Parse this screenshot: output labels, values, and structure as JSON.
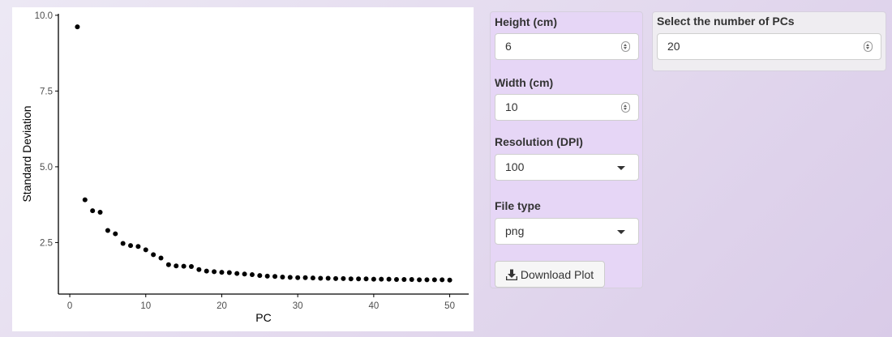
{
  "chart_data": {
    "type": "scatter",
    "title": "",
    "xlabel": "PC",
    "ylabel": "Standard Deviation",
    "xlim": [
      -1.5,
      52.5
    ],
    "ylim": [
      0.8,
      10.05
    ],
    "xticks": [
      0,
      10,
      20,
      30,
      40,
      50
    ],
    "yticks": [
      2.5,
      5.0,
      7.5,
      10.0
    ],
    "xtick_labels": [
      "0",
      "10",
      "20",
      "30",
      "40",
      "50"
    ],
    "ytick_labels": [
      "2.5",
      "5.0",
      "7.5",
      "10.0"
    ],
    "grid": false,
    "legend": "none",
    "point_color": "#000000",
    "x": [
      1,
      2,
      3,
      4,
      5,
      6,
      7,
      8,
      9,
      10,
      11,
      12,
      13,
      14,
      15,
      16,
      17,
      18,
      19,
      20,
      21,
      22,
      23,
      24,
      25,
      26,
      27,
      28,
      29,
      30,
      31,
      32,
      33,
      34,
      35,
      36,
      37,
      38,
      39,
      40,
      41,
      42,
      43,
      44,
      45,
      46,
      47,
      48,
      49,
      50
    ],
    "y": [
      9.62,
      3.91,
      3.55,
      3.5,
      2.9,
      2.79,
      2.47,
      2.4,
      2.37,
      2.26,
      2.1,
      1.99,
      1.77,
      1.73,
      1.72,
      1.71,
      1.61,
      1.56,
      1.54,
      1.52,
      1.51,
      1.48,
      1.46,
      1.44,
      1.41,
      1.39,
      1.38,
      1.36,
      1.35,
      1.34,
      1.34,
      1.33,
      1.32,
      1.32,
      1.31,
      1.31,
      1.3,
      1.3,
      1.3,
      1.29,
      1.29,
      1.29,
      1.28,
      1.28,
      1.28,
      1.27,
      1.27,
      1.27,
      1.27,
      1.26
    ]
  },
  "controls": {
    "height_label": "Height (cm)",
    "height_value": "6",
    "width_label": "Width (cm)",
    "width_value": "10",
    "resolution_label": "Resolution (DPI)",
    "resolution_value": "100",
    "filetype_label": "File type",
    "filetype_value": "png",
    "download_label": "Download Plot",
    "download_icon": "download-icon"
  },
  "pcs": {
    "label": "Select the number of PCs",
    "value": "20"
  },
  "colors": {
    "controls_background": "#e6d6f6",
    "pcs_background": "#efedf1"
  }
}
